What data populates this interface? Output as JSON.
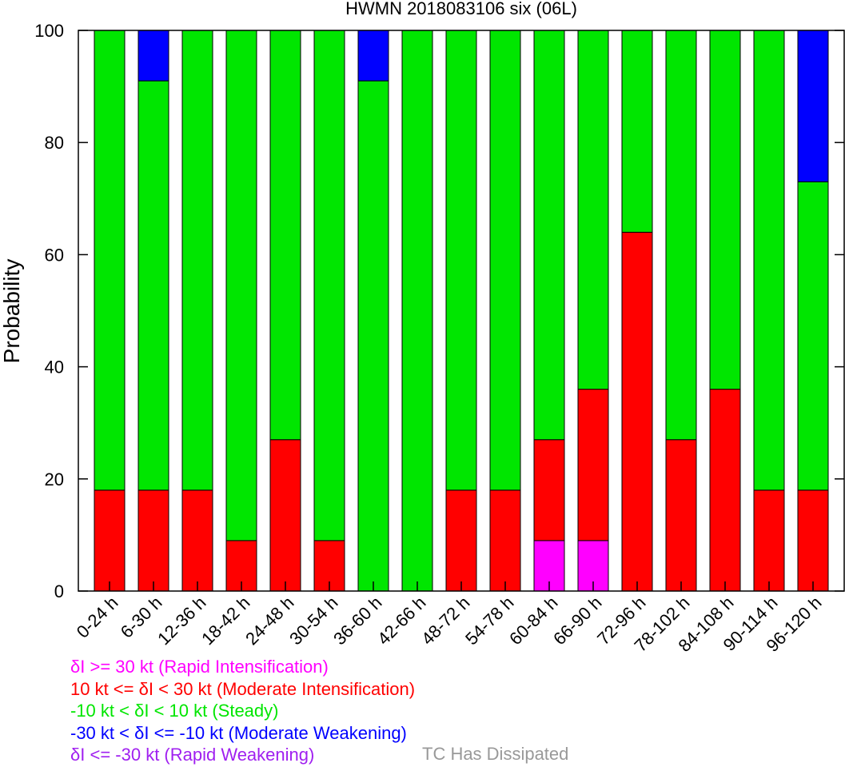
{
  "chart_data": {
    "type": "bar",
    "stacked": true,
    "title": "HWMN 2018083106 six (06L)",
    "ylabel": "Probability",
    "xlabel": "",
    "ylim": [
      0,
      100
    ],
    "yticks": [
      0,
      20,
      40,
      60,
      80,
      100
    ],
    "grid": false,
    "categories": [
      "0-24 h",
      "6-30 h",
      "12-36 h",
      "18-42 h",
      "24-48 h",
      "30-54 h",
      "36-60 h",
      "42-66 h",
      "48-72 h",
      "54-78 h",
      "60-84 h",
      "66-90 h",
      "72-96 h",
      "78-102 h",
      "84-108 h",
      "90-114 h",
      "96-120 h"
    ],
    "series": [
      {
        "name": "δI >= 30 kt (Rapid Intensification)",
        "color": "#ff00ff",
        "values": [
          0,
          0,
          0,
          0,
          0,
          0,
          0,
          0,
          0,
          0,
          9,
          9,
          0,
          0,
          0,
          0,
          0
        ]
      },
      {
        "name": "10 kt <= δI < 30 kt (Moderate Intensification)",
        "color": "#ff0000",
        "values": [
          18,
          18,
          18,
          9,
          27,
          9,
          0,
          0,
          18,
          18,
          18,
          27,
          64,
          27,
          36,
          18,
          18
        ]
      },
      {
        "name": "-10 kt < δI < 10 kt (Steady)",
        "color": "#00e600",
        "values": [
          82,
          73,
          82,
          91,
          73,
          91,
          91,
          100,
          82,
          82,
          73,
          64,
          36,
          73,
          64,
          82,
          55
        ]
      },
      {
        "name": "-30 kt < δI <= -10 kt (Moderate Weakening)",
        "color": "#0000ff",
        "values": [
          0,
          9,
          0,
          0,
          0,
          0,
          9,
          0,
          0,
          0,
          0,
          0,
          0,
          0,
          0,
          0,
          27
        ]
      },
      {
        "name": "δI <= -30 kt (Rapid Weakening)",
        "color": "#a020f0",
        "values": [
          0,
          0,
          0,
          0,
          0,
          0,
          0,
          0,
          0,
          0,
          0,
          0,
          0,
          0,
          0,
          0,
          0
        ]
      }
    ],
    "legend_placement": "bottom-left",
    "extra_legend": {
      "label": "TC Has Dissipated",
      "color": "#999999"
    }
  }
}
